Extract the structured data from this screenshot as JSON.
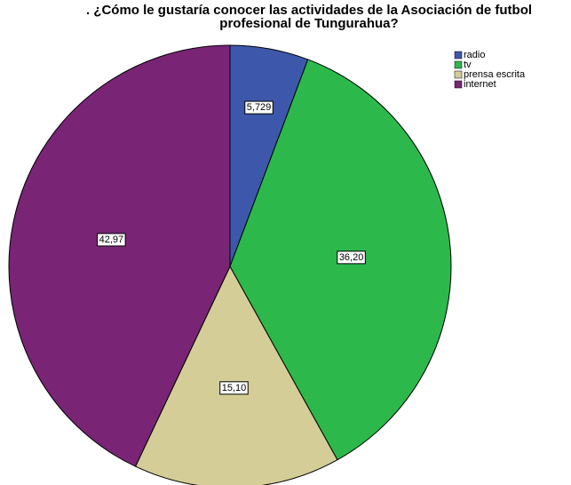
{
  "chart_data": {
    "type": "pie",
    "title": [
      ". ¿Cómo le gustaría conocer las actividades de la Asociación de futbol",
      "profesional de Tungurahua?"
    ],
    "series": [
      {
        "name": "radio",
        "color": "#3d58ab",
        "values": [
          5.729
        ],
        "value_labels": [
          "5,729"
        ]
      },
      {
        "name": "tv",
        "color": "#2db84b",
        "values": [
          36.2
        ],
        "value_labels": [
          "36,20"
        ]
      },
      {
        "name": "prensa escrita",
        "color": "#d4cd97",
        "values": [
          15.1
        ],
        "value_labels": [
          "15,10"
        ]
      },
      {
        "name": "internet",
        "color": "#7a2476",
        "values": [
          42.97
        ],
        "value_labels": [
          "42,97"
        ]
      }
    ],
    "legend": "top-right"
  }
}
